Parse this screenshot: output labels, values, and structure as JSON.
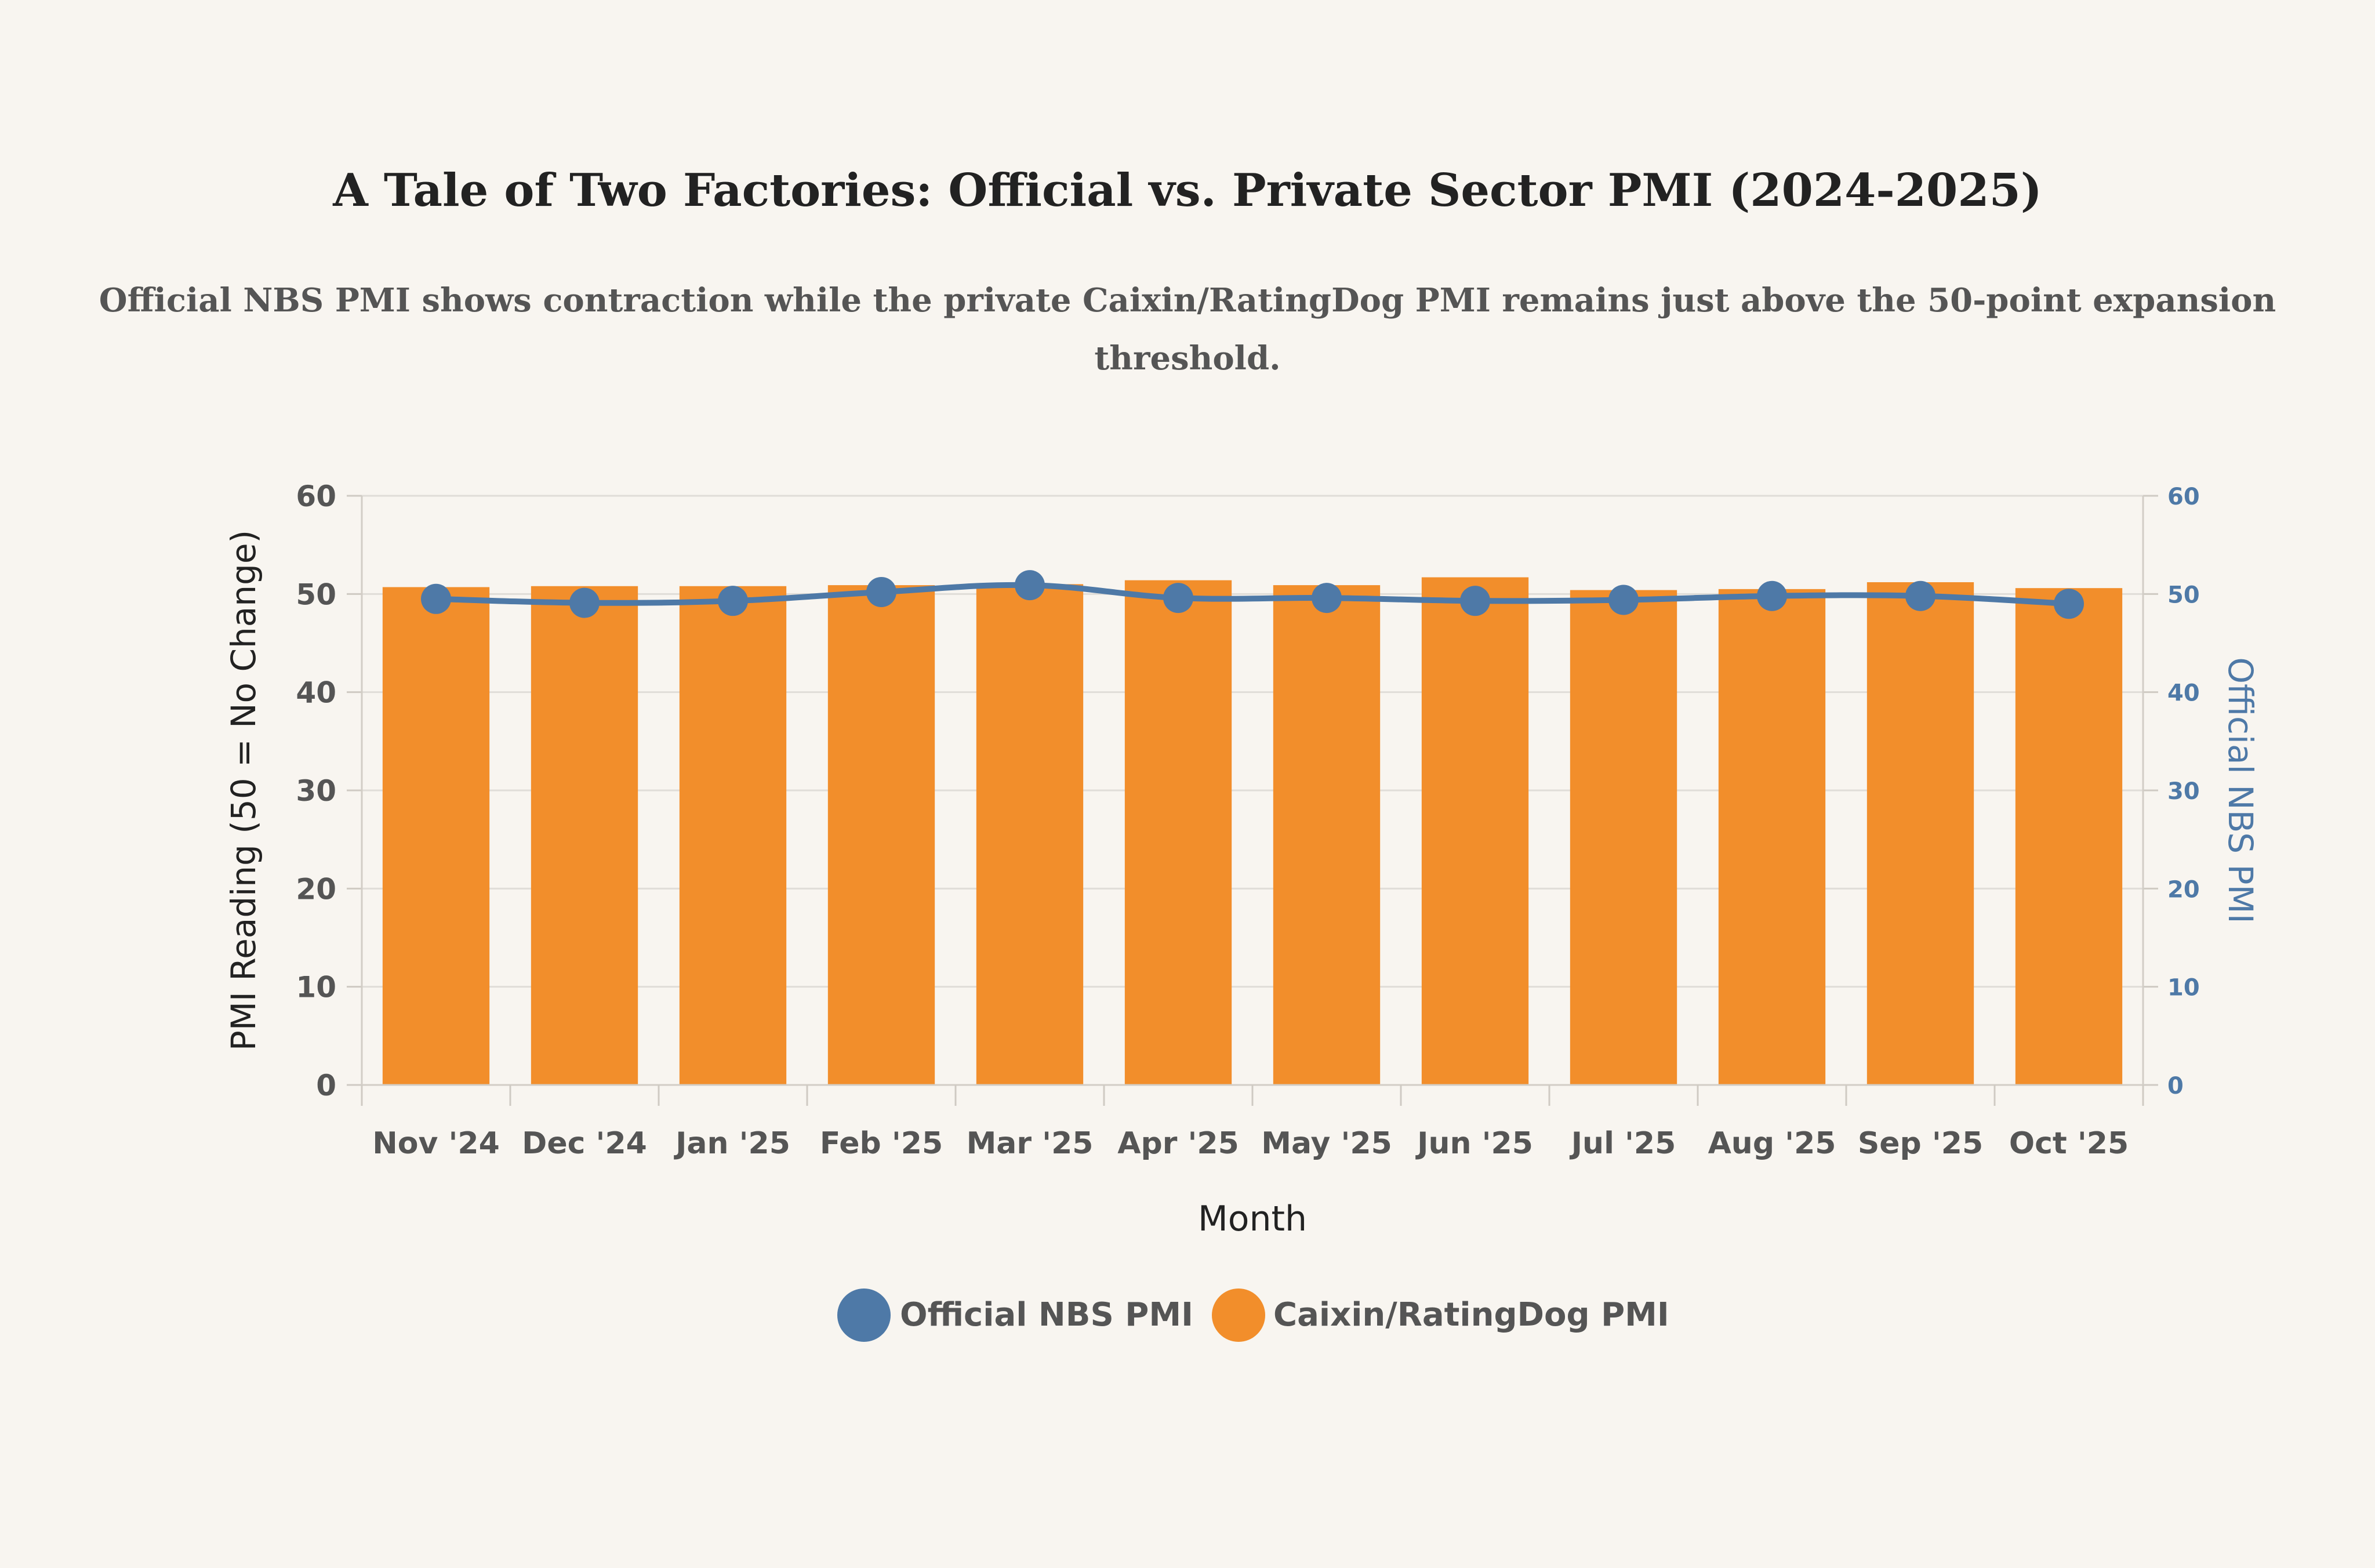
{
  "chart_data": {
    "type": "bar",
    "title": "A Tale of Two Factories: Official vs. Private Sector PMI (2024-2025)",
    "subtitle_lines": [
      "Official NBS PMI shows contraction while the private Caixin/RatingDog PMI remains just above the 50-point expansion",
      "threshold."
    ],
    "categories": [
      "Nov '24",
      "Dec '24",
      "Jan '25",
      "Feb '25",
      "Mar '25",
      "Apr '25",
      "May '25",
      "Jun '25",
      "Jul '25",
      "Aug '25",
      "Sep '25",
      "Oct '25"
    ],
    "series": [
      {
        "name": "Caixin/RatingDog PMI",
        "type": "bar",
        "axis": "left",
        "color": "#f28e2b",
        "values": [
          50.7,
          50.8,
          50.8,
          50.9,
          51.0,
          51.4,
          50.9,
          51.7,
          50.4,
          50.5,
          51.2,
          50.6
        ]
      },
      {
        "name": "Official NBS PMI",
        "type": "line",
        "axis": "right",
        "color": "#4e79a7",
        "values": [
          49.5,
          49.1,
          49.3,
          50.2,
          50.9,
          49.6,
          49.6,
          49.3,
          49.4,
          49.8,
          49.8,
          49.0
        ]
      }
    ],
    "xlabel": "Month",
    "ylabel": "PMI Reading (50 = No Change)",
    "y2label": "Official NBS PMI",
    "ylim": [
      0,
      60
    ],
    "y2lim": [
      0,
      60
    ],
    "yticks": [
      "0",
      "10",
      "20",
      "30",
      "40",
      "50",
      "60"
    ],
    "y2ticks": [
      "0",
      "10",
      "20",
      "30",
      "40",
      "50",
      "60"
    ],
    "grid": true,
    "legend": {
      "placement": "bottom-center",
      "entries": [
        "Official NBS PMI",
        "Caixin/RatingDog PMI"
      ]
    },
    "colors": {
      "background": "#f8f5f0",
      "bar": "#f28e2b",
      "line": "#4e79a7",
      "grid": "#e0ddd8",
      "text": "#333333",
      "muted_text": "#555555"
    }
  }
}
